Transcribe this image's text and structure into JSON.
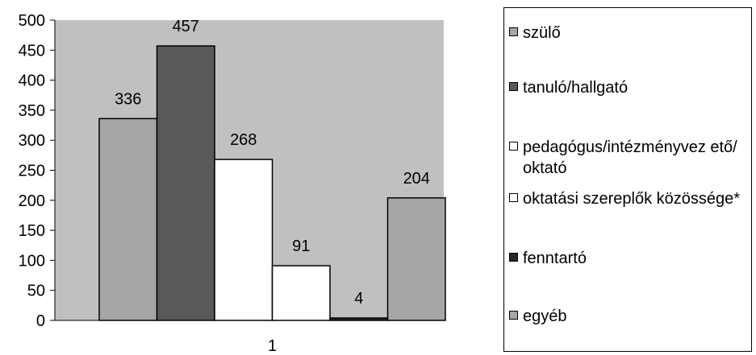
{
  "chart_data": {
    "type": "bar",
    "categories": [
      "1"
    ],
    "series": [
      {
        "name": "szülő",
        "values": [
          336
        ],
        "color": "#a6a6a6"
      },
      {
        "name": "tanuló/hallgató",
        "values": [
          457
        ],
        "color": "#595959"
      },
      {
        "name": "pedagógus/intézményvezető/oktató",
        "values": [
          268
        ],
        "color": "#ffffff"
      },
      {
        "name": "oktatási szereplők közössége*",
        "values": [
          91
        ],
        "color": "#ffffff"
      },
      {
        "name": "fenntartó",
        "values": [
          4
        ],
        "color": "#262626"
      },
      {
        "name": "egyéb",
        "values": [
          204
        ],
        "color": "#a6a6a6"
      }
    ],
    "ylim": [
      0,
      500
    ],
    "yticks": [
      0,
      50,
      100,
      150,
      200,
      250,
      300,
      350,
      400,
      450,
      500
    ],
    "plot_background": "#c0c0c0",
    "grid": false,
    "legend_position": "right",
    "data_labels": true
  },
  "legend": {
    "items": [
      {
        "label": "szülő"
      },
      {
        "label": "tanuló/hallgató"
      },
      {
        "label": "pedagógus/intézményvez ető/oktató"
      },
      {
        "label": "oktatási szereplők közössége*"
      },
      {
        "label": "fenntartó"
      },
      {
        "label": "egyéb"
      }
    ]
  }
}
